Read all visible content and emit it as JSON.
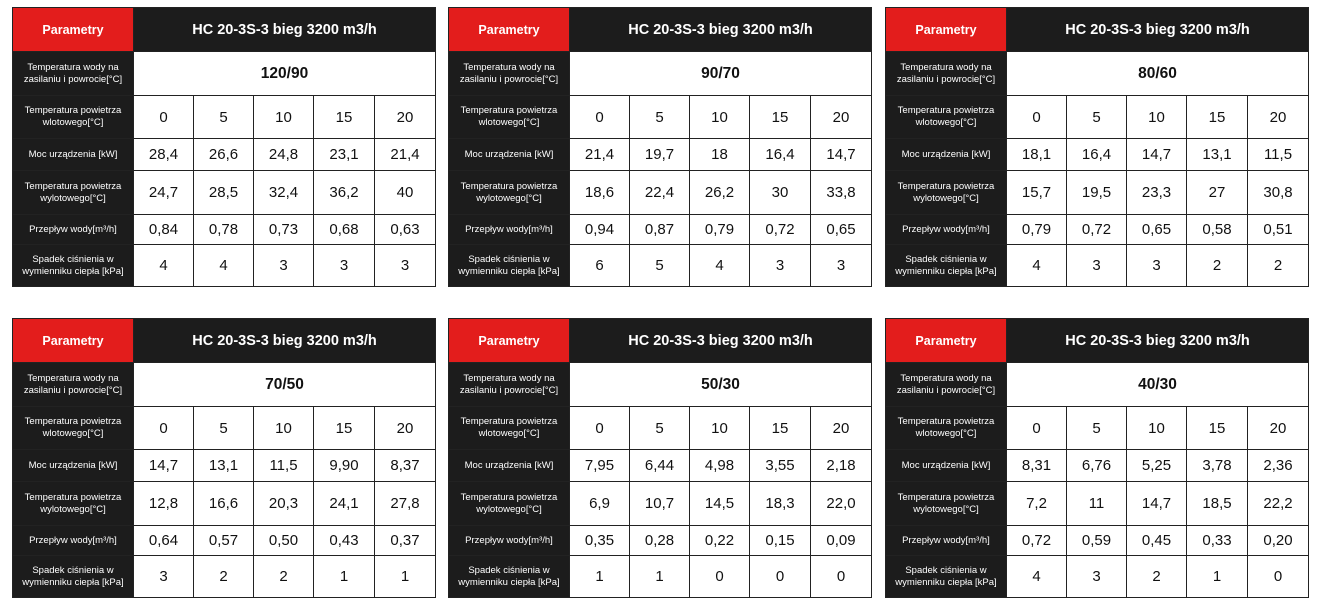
{
  "labels": {
    "param": "Parametry",
    "model": "HC 20-3S-3 bieg 3200 m3/h",
    "water_temp": "Temperatura wody na zasilaniu i powrocie[°C]",
    "air_in": "Temperatura powietrza wlotowego[°C]",
    "power": "Moc urządzenia [kW]",
    "air_out": "Temperatura powietrza wylotowego[°C]",
    "flow": "Przepływ wody[m³/h]",
    "pressure": "Spadek ciśnienia w wymienniku ciepła [kPa]"
  },
  "tables": [
    {
      "temp": "120/90",
      "air_in": [
        "0",
        "5",
        "10",
        "15",
        "20"
      ],
      "power": [
        "28,4",
        "26,6",
        "24,8",
        "23,1",
        "21,4"
      ],
      "air_out": [
        "24,7",
        "28,5",
        "32,4",
        "36,2",
        "40"
      ],
      "flow": [
        "0,84",
        "0,78",
        "0,73",
        "0,68",
        "0,63"
      ],
      "pressure": [
        "4",
        "4",
        "3",
        "3",
        "3"
      ]
    },
    {
      "temp": "90/70",
      "air_in": [
        "0",
        "5",
        "10",
        "15",
        "20"
      ],
      "power": [
        "21,4",
        "19,7",
        "18",
        "16,4",
        "14,7"
      ],
      "air_out": [
        "18,6",
        "22,4",
        "26,2",
        "30",
        "33,8"
      ],
      "flow": [
        "0,94",
        "0,87",
        "0,79",
        "0,72",
        "0,65"
      ],
      "pressure": [
        "6",
        "5",
        "4",
        "3",
        "3"
      ]
    },
    {
      "temp": "80/60",
      "air_in": [
        "0",
        "5",
        "10",
        "15",
        "20"
      ],
      "power": [
        "18,1",
        "16,4",
        "14,7",
        "13,1",
        "11,5"
      ],
      "air_out": [
        "15,7",
        "19,5",
        "23,3",
        "27",
        "30,8"
      ],
      "flow": [
        "0,79",
        "0,72",
        "0,65",
        "0,58",
        "0,51"
      ],
      "pressure": [
        "4",
        "3",
        "3",
        "2",
        "2"
      ]
    },
    {
      "temp": "70/50",
      "air_in": [
        "0",
        "5",
        "10",
        "15",
        "20"
      ],
      "power": [
        "14,7",
        "13,1",
        "11,5",
        "9,90",
        "8,37"
      ],
      "air_out": [
        "12,8",
        "16,6",
        "20,3",
        "24,1",
        "27,8"
      ],
      "flow": [
        "0,64",
        "0,57",
        "0,50",
        "0,43",
        "0,37"
      ],
      "pressure": [
        "3",
        "2",
        "2",
        "1",
        "1"
      ]
    },
    {
      "temp": "50/30",
      "air_in": [
        "0",
        "5",
        "10",
        "15",
        "20"
      ],
      "power": [
        "7,95",
        "6,44",
        "4,98",
        "3,55",
        "2,18"
      ],
      "air_out": [
        "6,9",
        "10,7",
        "14,5",
        "18,3",
        "22,0"
      ],
      "flow": [
        "0,35",
        "0,28",
        "0,22",
        "0,15",
        "0,09"
      ],
      "pressure": [
        "1",
        "1",
        "0",
        "0",
        "0"
      ]
    },
    {
      "temp": "40/30",
      "air_in": [
        "0",
        "5",
        "10",
        "15",
        "20"
      ],
      "power": [
        "8,31",
        "6,76",
        "5,25",
        "3,78",
        "2,36"
      ],
      "air_out": [
        "7,2",
        "11",
        "14,7",
        "18,5",
        "22,2"
      ],
      "flow": [
        "0,72",
        "0,59",
        "0,45",
        "0,33",
        "0,20"
      ],
      "pressure": [
        "4",
        "3",
        "2",
        "1",
        "0"
      ]
    }
  ]
}
